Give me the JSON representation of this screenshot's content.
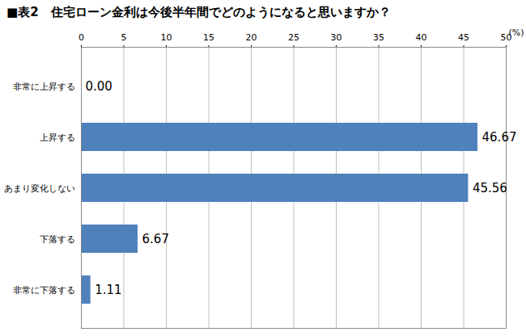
{
  "chart_data": {
    "type": "bar",
    "orientation": "horizontal",
    "title": "■表2　住宅ローン金利は今後半年間でどのようになると思いますか？",
    "x_label": "(%)",
    "categories": [
      "非常に上昇する",
      "上昇する",
      "あまり変化しない",
      "下落する",
      "非常に下落する"
    ],
    "values": [
      0,
      46.67,
      45.56,
      6.67,
      1.11
    ],
    "value_labels": [
      "0.00",
      "46.67",
      "45.56",
      "6.67",
      "1.11"
    ],
    "color": "#4f81bd",
    "xlim": [
      0,
      50
    ],
    "xticks": [
      0,
      5,
      10,
      15,
      20,
      25,
      30,
      35,
      40,
      45,
      50
    ],
    "grid": true,
    "data_labels": true
  }
}
